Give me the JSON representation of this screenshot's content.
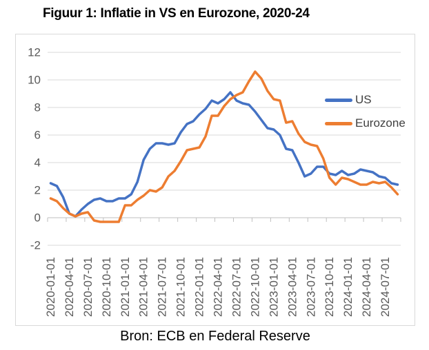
{
  "title": "Figuur 1: Inflatie in VS en Eurozone, 2020-24",
  "source": "Bron: ECB en Federal Reserve",
  "colors": {
    "us_line": "#4472C4",
    "eurozone_line": "#ED7D31",
    "gridline": "#D9D9D9",
    "axis_line": "#BFBFBF",
    "axis_text": "#595959",
    "legend_text": "#404040",
    "chart_border": "#D9D9D9"
  },
  "chart_data": {
    "type": "line",
    "title": "Figuur 1: Inflatie in VS en Eurozone, 2020-24",
    "xlabel": "",
    "ylabel": "",
    "ylim": [
      -2,
      12
    ],
    "y_ticks": [
      -2,
      0,
      2,
      4,
      6,
      8,
      10,
      12
    ],
    "grid": true,
    "legend_position": "inside-right",
    "x": [
      "2020-01-01",
      "2020-02-01",
      "2020-03-01",
      "2020-04-01",
      "2020-05-01",
      "2020-06-01",
      "2020-07-01",
      "2020-08-01",
      "2020-09-01",
      "2020-10-01",
      "2020-11-01",
      "2020-12-01",
      "2021-01-01",
      "2021-02-01",
      "2021-03-01",
      "2021-04-01",
      "2021-05-01",
      "2021-06-01",
      "2021-07-01",
      "2021-08-01",
      "2021-09-01",
      "2021-10-01",
      "2021-11-01",
      "2021-12-01",
      "2022-01-01",
      "2022-02-01",
      "2022-03-01",
      "2022-04-01",
      "2022-05-01",
      "2022-06-01",
      "2022-07-01",
      "2022-08-01",
      "2022-09-01",
      "2022-10-01",
      "2022-11-01",
      "2022-12-01",
      "2023-01-01",
      "2023-02-01",
      "2023-03-01",
      "2023-04-01",
      "2023-05-01",
      "2023-06-01",
      "2023-07-01",
      "2023-08-01",
      "2023-09-01",
      "2023-10-01",
      "2023-11-01",
      "2023-12-01",
      "2024-01-01",
      "2024-02-01",
      "2024-03-01",
      "2024-04-01",
      "2024-05-01",
      "2024-06-01",
      "2024-07-01",
      "2024-08-01",
      "2024-09-01"
    ],
    "x_tick_labels": [
      "2020-01-01",
      "2020-04-01",
      "2020-07-01",
      "2020-10-01",
      "2021-01-01",
      "2021-04-01",
      "2021-07-01",
      "2021-10-01",
      "2022-01-01",
      "2022-04-01",
      "2022-07-01",
      "2022-10-01",
      "2023-01-01",
      "2023-04-01",
      "2023-07-01",
      "2023-10-01",
      "2024-01-01",
      "2024-04-01",
      "2024-07-01"
    ],
    "x_tick_every": 3,
    "series": [
      {
        "name": "US",
        "color": "#4472C4",
        "values": [
          2.5,
          2.3,
          1.5,
          0.3,
          0.1,
          0.6,
          1.0,
          1.3,
          1.4,
          1.2,
          1.2,
          1.4,
          1.4,
          1.7,
          2.6,
          4.2,
          5.0,
          5.4,
          5.4,
          5.3,
          5.4,
          6.2,
          6.8,
          7.0,
          7.5,
          7.9,
          8.5,
          8.3,
          8.6,
          9.1,
          8.5,
          8.3,
          8.2,
          7.7,
          7.1,
          6.5,
          6.4,
          6.0,
          5.0,
          4.9,
          4.0,
          3.0,
          3.2,
          3.7,
          3.7,
          3.2,
          3.1,
          3.4,
          3.1,
          3.2,
          3.5,
          3.4,
          3.3,
          3.0,
          2.9,
          2.5,
          2.4
        ]
      },
      {
        "name": "Eurozone",
        "color": "#ED7D31",
        "values": [
          1.4,
          1.2,
          0.7,
          0.3,
          0.1,
          0.3,
          0.4,
          -0.2,
          -0.3,
          -0.3,
          -0.3,
          -0.3,
          0.9,
          0.9,
          1.3,
          1.6,
          2.0,
          1.9,
          2.2,
          3.0,
          3.4,
          4.1,
          4.9,
          5.0,
          5.1,
          5.9,
          7.4,
          7.4,
          8.1,
          8.6,
          8.9,
          9.1,
          9.9,
          10.6,
          10.1,
          9.2,
          8.6,
          8.5,
          6.9,
          7.0,
          6.1,
          5.5,
          5.3,
          5.2,
          4.3,
          2.9,
          2.4,
          2.9,
          2.8,
          2.6,
          2.4,
          2.4,
          2.6,
          2.5,
          2.6,
          2.2,
          1.7
        ]
      }
    ]
  }
}
